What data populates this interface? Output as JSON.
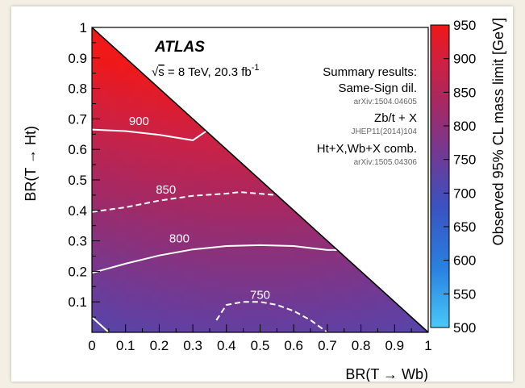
{
  "chart_data": {
    "type": "heatmap",
    "xlabel": "BR(T → Wb)",
    "ylabel": "BR(T → Ht)",
    "zlabel": "Observed 95% CL mass limit [GeV]",
    "xlim": [
      0,
      1
    ],
    "ylim": [
      0,
      1
    ],
    "zlim": [
      500,
      950
    ],
    "x_ticks": [
      "0",
      "0.1",
      "0.2",
      "0.3",
      "0.4",
      "0.5",
      "0.6",
      "0.7",
      "0.8",
      "0.9",
      "1"
    ],
    "y_ticks": [
      "0.1",
      "0.2",
      "0.3",
      "0.4",
      "0.5",
      "0.6",
      "0.7",
      "0.8",
      "0.9",
      "1"
    ],
    "z_ticks": [
      "500",
      "550",
      "600",
      "650",
      "700",
      "750",
      "800",
      "850",
      "900",
      "950"
    ],
    "grid": false,
    "colormap": [
      "#48c8f8",
      "#2a7fe0",
      "#3a52c0",
      "#6a3c9a",
      "#a02a68",
      "#d02040",
      "#f01818"
    ],
    "annotations": {
      "experiment": "ATLAS",
      "energy_prefix": "s",
      "energy_text": " = 8 TeV, 20.3 fb",
      "energy_sup": "-1",
      "summary_title": "Summary results:",
      "results": [
        {
          "name": "Same-Sign dil.",
          "ref": "arXiv:1504.04605"
        },
        {
          "name": "Zb/t + X",
          "ref": "JHEP11(2014)104"
        },
        {
          "name": "Ht+X,Wb+X comb.",
          "ref": "arXiv:1505.04306"
        }
      ]
    },
    "contours": [
      {
        "label": "900",
        "style": "solid",
        "points": [
          [
            0,
            0.665
          ],
          [
            0.1,
            0.66
          ],
          [
            0.2,
            0.648
          ],
          [
            0.3,
            0.63
          ],
          [
            0.34,
            0.66
          ]
        ]
      },
      {
        "label": "850",
        "style": "dashed",
        "points": [
          [
            0,
            0.395
          ],
          [
            0.1,
            0.41
          ],
          [
            0.2,
            0.432
          ],
          [
            0.3,
            0.448
          ],
          [
            0.4,
            0.455
          ],
          [
            0.44,
            0.46
          ],
          [
            0.55,
            0.45
          ]
        ]
      },
      {
        "label": "800",
        "style": "solid",
        "points": [
          [
            0,
            0.195
          ],
          [
            0.1,
            0.225
          ],
          [
            0.2,
            0.252
          ],
          [
            0.3,
            0.272
          ],
          [
            0.4,
            0.283
          ],
          [
            0.5,
            0.286
          ],
          [
            0.6,
            0.283
          ],
          [
            0.7,
            0.27
          ],
          [
            0.73,
            0.27
          ]
        ]
      },
      {
        "label": "750",
        "style": "dashed",
        "points": [
          [
            0.37,
            0.04
          ],
          [
            0.4,
            0.09
          ],
          [
            0.45,
            0.1
          ],
          [
            0.5,
            0.1
          ],
          [
            0.55,
            0.09
          ],
          [
            0.6,
            0.07
          ],
          [
            0.65,
            0.04
          ],
          [
            0.7,
            0.0
          ]
        ]
      },
      {
        "label": "",
        "style": "solid",
        "points": [
          [
            0.0,
            0.05
          ],
          [
            0.05,
            0.0
          ]
        ]
      }
    ]
  }
}
